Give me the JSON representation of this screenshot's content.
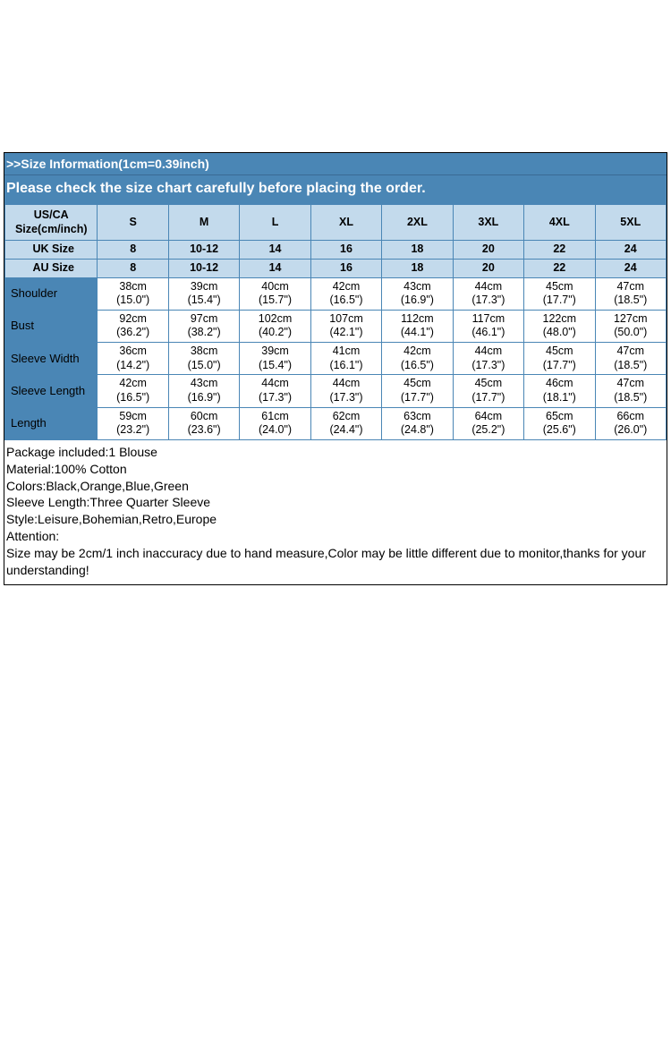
{
  "header": {
    "info_line": ">>Size Information(1cm=0.39inch)",
    "warning": "Please check the size chart carefully before placing the order."
  },
  "columns": {
    "main_label": "US/CA Size(cm/inch)",
    "sizes": [
      "S",
      "M",
      "L",
      "XL",
      "2XL",
      "3XL",
      "4XL",
      "5XL"
    ]
  },
  "alt_size_rows": [
    {
      "label": "UK Size",
      "values": [
        "8",
        "10-12",
        "14",
        "16",
        "18",
        "20",
        "22",
        "24"
      ]
    },
    {
      "label": "AU Size",
      "values": [
        "8",
        "10-12",
        "14",
        "16",
        "18",
        "20",
        "22",
        "24"
      ]
    }
  ],
  "measure_rows": [
    {
      "label": "Shoulder",
      "cm": [
        "38cm",
        "39cm",
        "40cm",
        "42cm",
        "43cm",
        "44cm",
        "45cm",
        "47cm"
      ],
      "inch": [
        "(15.0\")",
        "(15.4\")",
        "(15.7\")",
        "(16.5\")",
        "(16.9\")",
        "(17.3\")",
        "(17.7\")",
        "(18.5\")"
      ]
    },
    {
      "label": "Bust",
      "cm": [
        "92cm",
        "97cm",
        "102cm",
        "107cm",
        "112cm",
        "117cm",
        "122cm",
        "127cm"
      ],
      "inch": [
        "(36.2\")",
        "(38.2\")",
        "(40.2\")",
        "(42.1\")",
        "(44.1\")",
        "(46.1\")",
        "(48.0\")",
        "(50.0\")"
      ]
    },
    {
      "label": "Sleeve Width",
      "cm": [
        "36cm",
        "38cm",
        "39cm",
        "41cm",
        "42cm",
        "44cm",
        "45cm",
        "47cm"
      ],
      "inch": [
        "(14.2\")",
        "(15.0\")",
        "(15.4\")",
        "(16.1\")",
        "(16.5\")",
        "(17.3\")",
        "(17.7\")",
        "(18.5\")"
      ]
    },
    {
      "label": "Sleeve Length",
      "cm": [
        "42cm",
        "43cm",
        "44cm",
        "44cm",
        "45cm",
        "45cm",
        "46cm",
        "47cm"
      ],
      "inch": [
        "(16.5\")",
        "(16.9\")",
        "(17.3\")",
        "(17.3\")",
        "(17.7\")",
        "(17.7\")",
        "(18.1\")",
        "(18.5\")"
      ]
    },
    {
      "label": "Length",
      "cm": [
        "59cm",
        "60cm",
        "61cm",
        "62cm",
        "63cm",
        "64cm",
        "65cm",
        "66cm"
      ],
      "inch": [
        "(23.2\")",
        "(23.6\")",
        "(24.0\")",
        "(24.4\")",
        "(24.8\")",
        "(25.2\")",
        "(25.6\")",
        "(26.0\")"
      ]
    }
  ],
  "details": {
    "l1": "Package included:1 Blouse",
    "l2": "Material:100% Cotton",
    "l3": "Colors:Black,Orange,Blue,Green",
    "l4": "Sleeve Length:Three Quarter Sleeve",
    "l5": "Style:Leisure,Bohemian,Retro,Europe",
    "l6": "Attention:",
    "l7": "Size may be 2cm/1 inch inaccuracy due to hand measure,Color may be little different due to monitor,thanks for your understanding!"
  },
  "colors": {
    "brand_blue": "#4a86b5",
    "light_blue": "#c3daec",
    "white": "#ffffff",
    "border": "#4a86b5"
  }
}
